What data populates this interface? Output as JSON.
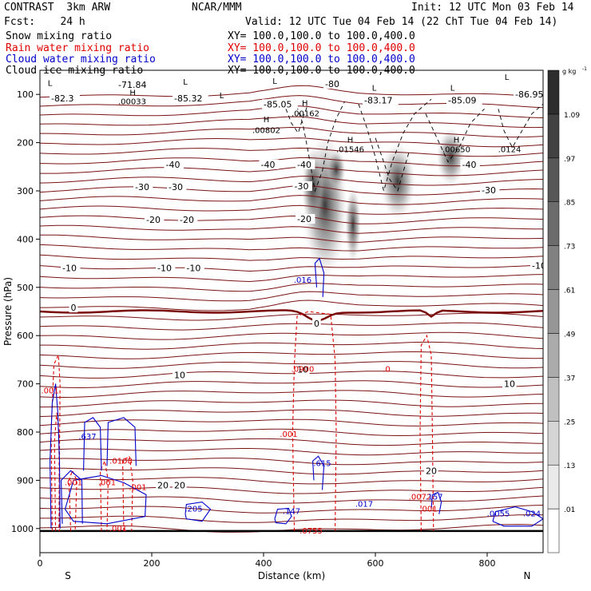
{
  "header": {
    "line1_left": "CONTRAST  3km ARW",
    "line1_center": "NCAR/MMM",
    "line1_right": "Init: 12 UTC Mon 03 Feb 14",
    "line2_left": "Fcst:    24 h",
    "line2_right": "Valid: 12 UTC Tue 04 Feb 14 (22 ChT Tue 04 Feb 14)"
  },
  "fields": [
    {
      "name": "Snow mixing ratio",
      "xy": "XY= 100.0,100.0 to 100.0,400.0",
      "color": "#000000"
    },
    {
      "name": "Rain water mixing ratio",
      "xy": "XY= 100.0,100.0 to 100.0,400.0",
      "color": "#e00000"
    },
    {
      "name": "Cloud water mixing ratio",
      "xy": "XY= 100.0,100.0 to 100.0,400.0",
      "color": "#0000cc"
    },
    {
      "name": "Cloud ice mixing ratio",
      "xy": "XY= 100.0,100.0 to 100.0,400.0",
      "color": "#000000"
    }
  ],
  "colors": {
    "temperature": "#7a1212",
    "rain": "#e00000",
    "cloud_water": "#0000cc",
    "axis": "#000000"
  },
  "chart_data": {
    "type": "cross-section",
    "xlabel": "Distance (km)",
    "ylabel": "Pressure (hPa)",
    "xlim": [
      0,
      900
    ],
    "ylim": [
      1050,
      50
    ],
    "xticks": [
      0,
      200,
      400,
      600,
      800
    ],
    "yticks": [
      100,
      200,
      300,
      400,
      500,
      600,
      700,
      800,
      900,
      1000
    ],
    "x_end_labels": {
      "left": "S",
      "right": "N"
    },
    "colorbar": {
      "unit": "g kg",
      "unit_exp": "-1",
      "levels": [
        0.01,
        0.13,
        0.25,
        0.37,
        0.49,
        0.61,
        0.73,
        0.85,
        0.97,
        1.09
      ],
      "level_labels": [
        ".01",
        ".13",
        ".25",
        ".37",
        ".49",
        ".61",
        ".73",
        ".85",
        ".97",
        "1.09"
      ]
    },
    "temperature_labels": [
      {
        "x": 20,
        "p": 108,
        "text": "-82.3"
      },
      {
        "x": 140,
        "p": 80,
        "text": "-71.84"
      },
      {
        "x": 240,
        "p": 108,
        "text": "-85.32"
      },
      {
        "x": 510,
        "p": 78,
        "text": "-80"
      },
      {
        "x": 400,
        "p": 120,
        "text": "-85.05"
      },
      {
        "x": 580,
        "p": 112,
        "text": "-83.17"
      },
      {
        "x": 730,
        "p": 112,
        "text": "-85.09"
      },
      {
        "x": 850,
        "p": 100,
        "text": "-86.95"
      },
      {
        "x": 225,
        "p": 245,
        "text": "-40"
      },
      {
        "x": 395,
        "p": 245,
        "text": "-40"
      },
      {
        "x": 460,
        "p": 245,
        "text": "-40"
      },
      {
        "x": 755,
        "p": 245,
        "text": "-40"
      },
      {
        "x": 170,
        "p": 292,
        "text": "-30"
      },
      {
        "x": 230,
        "p": 292,
        "text": "-30"
      },
      {
        "x": 455,
        "p": 290,
        "text": "-30"
      },
      {
        "x": 790,
        "p": 298,
        "text": "-30"
      },
      {
        "x": 190,
        "p": 360,
        "text": "-20"
      },
      {
        "x": 250,
        "p": 360,
        "text": "-20"
      },
      {
        "x": 460,
        "p": 358,
        "text": "-20"
      },
      {
        "x": 40,
        "p": 460,
        "text": "-10"
      },
      {
        "x": 210,
        "p": 460,
        "text": "-10"
      },
      {
        "x": 262,
        "p": 460,
        "text": "-10"
      },
      {
        "x": 880,
        "p": 455,
        "text": "-10"
      },
      {
        "x": 55,
        "p": 542,
        "text": "0"
      },
      {
        "x": 490,
        "p": 575,
        "text": "0"
      },
      {
        "x": 240,
        "p": 682,
        "text": "10"
      },
      {
        "x": 460,
        "p": 670,
        "text": "10"
      },
      {
        "x": 830,
        "p": 700,
        "text": "10"
      },
      {
        "x": 210,
        "p": 910,
        "text": "20"
      },
      {
        "x": 240,
        "p": 910,
        "text": "20"
      },
      {
        "x": 690,
        "p": 880,
        "text": "20"
      }
    ],
    "maxima_labels": [
      {
        "x": 165,
        "p": 120,
        "text": ".00033",
        "color": "#000000"
      },
      {
        "x": 405,
        "p": 180,
        "text": ".00802",
        "color": "#000000"
      },
      {
        "x": 475,
        "p": 145,
        "text": ".00162",
        "color": "#000000"
      },
      {
        "x": 555,
        "p": 220,
        "text": ".01546",
        "color": "#000000"
      },
      {
        "x": 745,
        "p": 220,
        "text": ".00650",
        "color": "#000000"
      },
      {
        "x": 840,
        "p": 220,
        "text": ".0124",
        "color": "#000000"
      },
      {
        "x": 470,
        "p": 490,
        "text": ".016",
        "color": "#0000cc"
      },
      {
        "x": 470,
        "p": 675,
        "text": ".0900",
        "color": "#e00000"
      },
      {
        "x": 620,
        "p": 675,
        "text": ".0",
        "color": "#e00000"
      },
      {
        "x": 18,
        "p": 720,
        "text": ".001",
        "color": "#e00000"
      },
      {
        "x": 445,
        "p": 810,
        "text": ".001",
        "color": "#e00000"
      },
      {
        "x": 505,
        "p": 870,
        "text": ".615",
        "color": "#0000cc"
      },
      {
        "x": 680,
        "p": 940,
        "text": ".0072",
        "color": "#e00000"
      },
      {
        "x": 705,
        "p": 940,
        "text": ".157",
        "color": "#0000cc"
      },
      {
        "x": 580,
        "p": 955,
        "text": ".017",
        "color": "#0000cc"
      },
      {
        "x": 275,
        "p": 965,
        "text": ".205",
        "color": "#0000cc"
      },
      {
        "x": 450,
        "p": 970,
        "text": ".147",
        "color": "#0000cc"
      },
      {
        "x": 485,
        "p": 1010,
        "text": ".0755",
        "color": "#e00000"
      },
      {
        "x": 695,
        "p": 965,
        "text": ".001",
        "color": "#e00000"
      },
      {
        "x": 820,
        "p": 975,
        "text": ".0055",
        "color": "#0000cc"
      },
      {
        "x": 880,
        "p": 975,
        "text": ".024",
        "color": "#0000cc"
      },
      {
        "x": 60,
        "p": 910,
        "text": ".001",
        "color": "#e00000"
      },
      {
        "x": 120,
        "p": 910,
        "text": ".001",
        "color": "#e00000"
      },
      {
        "x": 175,
        "p": 920,
        "text": ".001",
        "color": "#e00000"
      },
      {
        "x": 140,
        "p": 1005,
        "text": ".001",
        "color": "#e00000"
      },
      {
        "x": 145,
        "p": 865,
        "text": ".0108",
        "color": "#e00000"
      },
      {
        "x": 85,
        "p": 815,
        "text": ".637",
        "color": "#0000cc"
      }
    ],
    "letter_labels": [
      {
        "x": 18,
        "p": 82,
        "text": "L"
      },
      {
        "x": 260,
        "p": 80,
        "text": "L"
      },
      {
        "x": 420,
        "p": 78,
        "text": "L"
      },
      {
        "x": 325,
        "p": 108,
        "text": "L"
      },
      {
        "x": 598,
        "p": 92,
        "text": "L"
      },
      {
        "x": 738,
        "p": 92,
        "text": "L"
      },
      {
        "x": 835,
        "p": 70,
        "text": "L"
      },
      {
        "x": 166,
        "p": 102,
        "text": "H"
      },
      {
        "x": 405,
        "p": 158,
        "text": "H"
      },
      {
        "x": 474,
        "p": 124,
        "text": "H"
      },
      {
        "x": 555,
        "p": 200,
        "text": "H"
      },
      {
        "x": 745,
        "p": 200,
        "text": "H"
      }
    ]
  }
}
